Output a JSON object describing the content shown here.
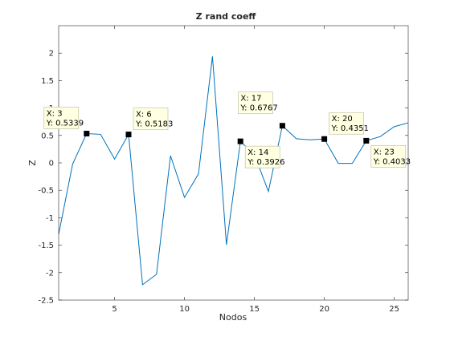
{
  "chart_data": {
    "type": "line",
    "title": "Z rand coeff",
    "xlabel": "Nodos",
    "ylabel": "Z",
    "xlim": [
      1,
      26
    ],
    "ylim": [
      -2.5,
      2.5
    ],
    "xticks": [
      5,
      10,
      15,
      20,
      25
    ],
    "yticks": [
      -2.5,
      -2,
      -1.5,
      -1,
      -0.5,
      0,
      0.5,
      1,
      1.5,
      2
    ],
    "ytick_labels": [
      "-2.5",
      "-2",
      "-1.5",
      "-1",
      "-0.5",
      "0",
      "0.5",
      "1",
      "1.5",
      "2"
    ],
    "grid": false,
    "series_color": "#0072BD",
    "series": [
      {
        "x": [
          1,
          2,
          3,
          4,
          5,
          6,
          7,
          8,
          9,
          10,
          11,
          12,
          13,
          14,
          15,
          16,
          17,
          18,
          19,
          20,
          21,
          22,
          23,
          24,
          25,
          26
        ],
        "values": [
          -1.3,
          -0.02,
          0.5339,
          0.52,
          0.07,
          0.5183,
          -2.22,
          -2.03,
          0.13,
          -0.63,
          -0.2,
          1.94,
          -1.49,
          0.3926,
          0.15,
          -0.52,
          0.6767,
          0.44,
          0.42,
          0.4351,
          -0.01,
          -0.01,
          0.4033,
          0.48,
          0.66,
          0.73
        ]
      }
    ],
    "datatips": [
      {
        "x": 3,
        "y": 0.5339,
        "xlabel": "X: 3",
        "ylabel": "Y: 0.5339",
        "side": "above"
      },
      {
        "x": 6,
        "y": 0.5183,
        "xlabel": "X: 6",
        "ylabel": "Y: 0.5183",
        "side": "above-right"
      },
      {
        "x": 14,
        "y": 0.3926,
        "xlabel": "X: 14",
        "ylabel": "Y: 0.3926",
        "side": "below-right"
      },
      {
        "x": 17,
        "y": 0.6767,
        "xlabel": "X: 17",
        "ylabel": "Y: 0.6767",
        "side": "above-left"
      },
      {
        "x": 20,
        "y": 0.4351,
        "xlabel": "X: 20",
        "ylabel": "Y: 0.4351",
        "side": "above-right"
      },
      {
        "x": 23,
        "y": 0.4033,
        "xlabel": "X: 23",
        "ylabel": "Y: 0.4033",
        "side": "below-right"
      }
    ]
  }
}
